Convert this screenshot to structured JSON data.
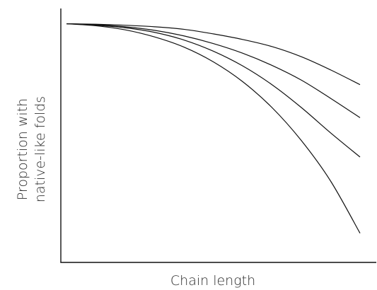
{
  "chart_data": {
    "type": "line",
    "title": "",
    "xlabel": "Chain length",
    "ylabel_lines": [
      "Proportion with",
      "native-like folds"
    ],
    "xlim": [
      0,
      1
    ],
    "ylim": [
      0,
      1
    ],
    "grid": false,
    "legend": "none",
    "line_color": "#111111",
    "series": [
      {
        "x": [
          0.0,
          0.1,
          0.2,
          0.3,
          0.4,
          0.5,
          0.6,
          0.7,
          0.8,
          0.9,
          1.0
        ],
        "y": [
          0.94,
          0.938,
          0.934,
          0.928,
          0.918,
          0.9,
          0.878,
          0.85,
          0.81,
          0.758,
          0.7
        ]
      },
      {
        "x": [
          0.0,
          0.1,
          0.2,
          0.3,
          0.4,
          0.5,
          0.6,
          0.7,
          0.8,
          0.9,
          1.0
        ],
        "y": [
          0.94,
          0.936,
          0.928,
          0.914,
          0.892,
          0.862,
          0.824,
          0.776,
          0.718,
          0.646,
          0.57
        ]
      },
      {
        "x": [
          0.0,
          0.1,
          0.2,
          0.3,
          0.4,
          0.5,
          0.6,
          0.7,
          0.8,
          0.9,
          1.0
        ],
        "y": [
          0.94,
          0.934,
          0.924,
          0.906,
          0.876,
          0.832,
          0.774,
          0.7,
          0.61,
          0.51,
          0.415
        ]
      },
      {
        "x": [
          0.0,
          0.1,
          0.2,
          0.3,
          0.4,
          0.5,
          0.6,
          0.7,
          0.8,
          0.9,
          1.0
        ],
        "y": [
          0.94,
          0.932,
          0.916,
          0.888,
          0.848,
          0.79,
          0.712,
          0.61,
          0.48,
          0.32,
          0.115
        ]
      }
    ]
  }
}
